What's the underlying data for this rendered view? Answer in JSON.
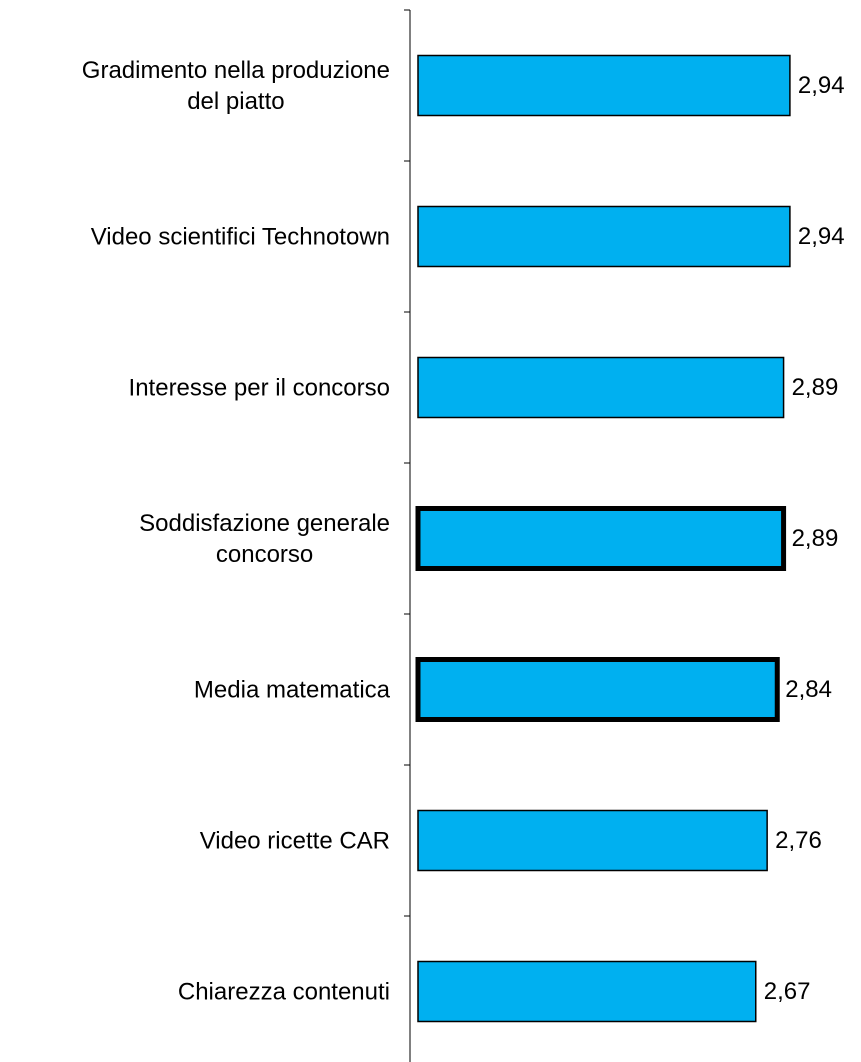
{
  "chart_data": {
    "type": "bar",
    "orientation": "horizontal",
    "categories": [
      "Gradimento nella produzione\ndel piatto",
      "Video scientifici Technotown",
      "Interesse per il concorso",
      "Soddisfazione generale\nconcorso",
      "Media matematica",
      "Video ricette CAR",
      "Chiarezza contenuti"
    ],
    "values": [
      2.94,
      2.94,
      2.89,
      2.89,
      2.84,
      2.76,
      2.67
    ],
    "value_labels": [
      "2,94",
      "2,94",
      "2,89",
      "2,89",
      "2,84",
      "2,76",
      "2,67"
    ],
    "highlight": [
      false,
      false,
      false,
      true,
      true,
      false,
      false
    ],
    "color": "#00b0f0"
  }
}
